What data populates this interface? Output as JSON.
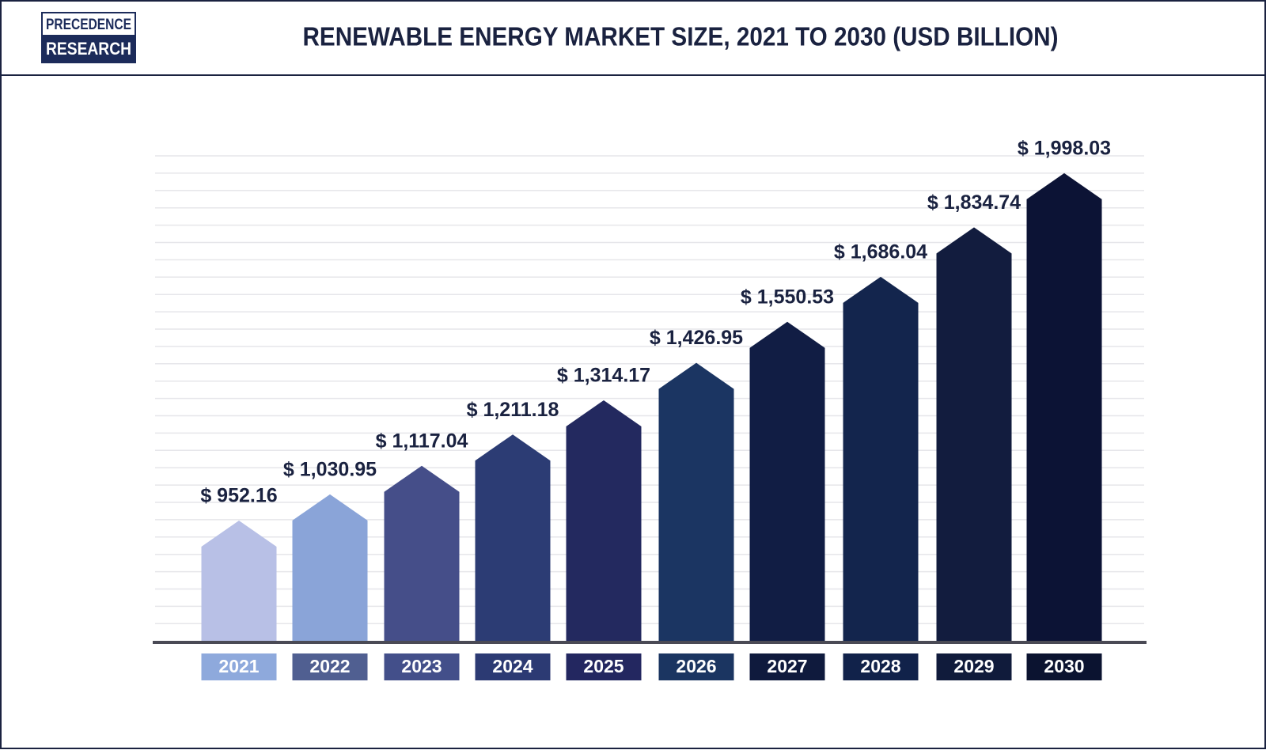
{
  "logo": {
    "line1": "PRECEDENCE",
    "line2": "RESEARCH"
  },
  "chart_data": {
    "type": "arrow-bar",
    "title": "RENEWABLE ENERGY MARKET SIZE, 2021 TO 2030 (USD BILLION)",
    "categories": [
      "2021",
      "2022",
      "2023",
      "2024",
      "2025",
      "2026",
      "2027",
      "2028",
      "2029",
      "2030"
    ],
    "values": [
      952.16,
      1030.95,
      1117.04,
      1211.18,
      1314.17,
      1426.95,
      1550.53,
      1686.04,
      1834.74,
      1998.03
    ],
    "value_labels": [
      "$ 952.16",
      "$ 1,030.95",
      "$ 1,117.04",
      "$ 1,211.18",
      "$ 1,314.17",
      "$ 1,426.95",
      "$ 1,550.53",
      "$ 1,686.04",
      "$ 1,834.74",
      "$ 1,998.03"
    ],
    "colors": [
      "#b8c0e6",
      "#8aa4d8",
      "#454e89",
      "#2c3c74",
      "#23295f",
      "#1b3562",
      "#111d44",
      "#13254d",
      "#121c3e",
      "#0c1335"
    ],
    "label_colors": [
      "#8ea9dc",
      "#505f91",
      "#434f8a",
      "#2c3a73",
      "#232760",
      "#1b3561",
      "#0f1a3d",
      "#11224a",
      "#101b3b",
      "#0b1330"
    ],
    "ylim": [
      590,
      2050
    ]
  }
}
